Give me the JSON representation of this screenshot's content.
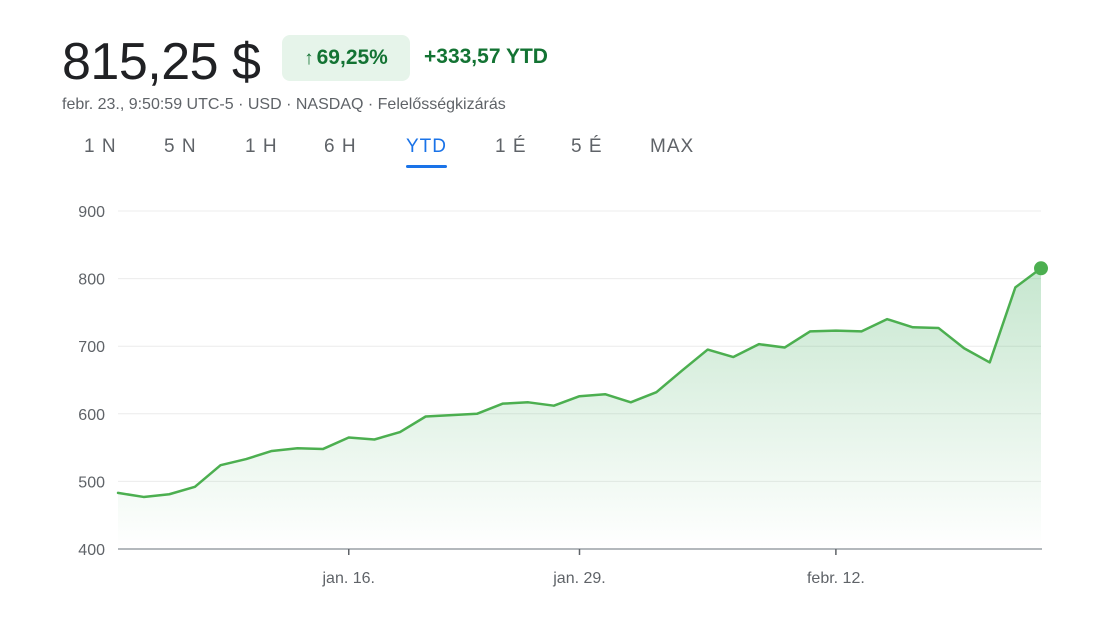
{
  "header": {
    "price": "815,25 $",
    "change_arrow": "↑",
    "change_percent": "69,25%",
    "change_ytd": "+333,57 YTD",
    "meta": "febr. 23., 9:50:59 UTC-5 · USD · NASDAQ · Felelősségkizárás"
  },
  "tabs": [
    {
      "label": "1 N"
    },
    {
      "label": "5 N"
    },
    {
      "label": "1 H"
    },
    {
      "label": "6 H"
    },
    {
      "label": "YTD",
      "active": true
    },
    {
      "label": "1 É"
    },
    {
      "label": "5 É"
    },
    {
      "label": "MAX"
    }
  ],
  "colors": {
    "positive": "#137333",
    "line": "#4caf50",
    "active_tab": "#1a73e8",
    "badge_bg": "#e6f4ea"
  },
  "chart_data": {
    "type": "area",
    "title": "",
    "xlabel": "",
    "ylabel": "",
    "ylim": [
      400,
      900
    ],
    "yticks": [
      900,
      800,
      700,
      600,
      500,
      400
    ],
    "xticks": [
      {
        "label": "jan. 16.",
        "index": 9
      },
      {
        "label": "jan. 29.",
        "index": 18
      },
      {
        "label": "febr. 12.",
        "index": 28
      }
    ],
    "grid": true,
    "legend": "none",
    "series": [
      {
        "values": [
          483,
          477,
          481,
          492,
          524,
          533,
          545,
          549,
          548,
          565,
          562,
          573,
          596,
          598,
          600,
          615,
          617,
          612,
          626,
          629,
          617,
          632,
          664,
          695,
          684,
          703,
          698,
          722,
          723,
          722,
          740,
          728,
          727,
          697,
          676,
          787,
          815.25
        ]
      }
    ]
  }
}
